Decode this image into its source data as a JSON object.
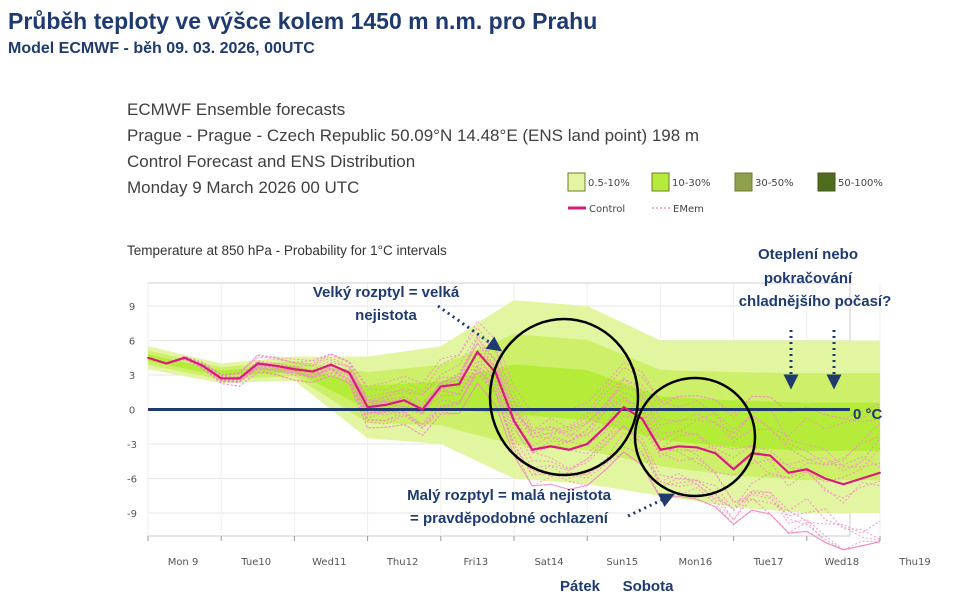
{
  "page": {
    "title": "Průběh teploty ve výšce kolem 1450 m n.m. pro Prahu",
    "subtitle": "Model ECMWF - běh 09. 03. 2026, 00UTC"
  },
  "chart_header": {
    "line1": "ECMWF Ensemble forecasts",
    "line2": "Prague - Prague - Czech Republic 50.09°N 14.48°E (ENS land point) 198 m",
    "line3": "Control Forecast and ENS Distribution",
    "line4": "Monday 9 March 2026 00 UTC",
    "panel_title": "Temperature at 850 hPa - Probability for 1°C intervals"
  },
  "legend": {
    "items": [
      {
        "label": "0.5-10%",
        "color": "#e2f5a0"
      },
      {
        "label": "10-30%",
        "color": "#b5ec3a"
      },
      {
        "label": "30-50%",
        "color": "#8ea04e"
      },
      {
        "label": "50-100%",
        "color": "#4f6b1e"
      }
    ],
    "control_label": "Control",
    "emem_label": "EMem"
  },
  "annotations": {
    "big_spread_1": "Velký rozptyl = velká",
    "big_spread_2": "nejistota",
    "small_spread_1": "Malý rozptyl = malá nejistota",
    "small_spread_2": "= pravděpodobné ochlazení",
    "warming_1": "Oteplení nebo",
    "warming_2": "pokračování",
    "warming_3": "chladnějšího počasí?",
    "zero_label": "0 °C",
    "friday": "Pátek",
    "saturday": "Sobota"
  },
  "chart_data": {
    "type": "line",
    "title": "Temperature at 850 hPa - Probability for 1°C intervals",
    "ylim": [
      -11,
      11
    ],
    "xlim": [
      0,
      10
    ],
    "y_ticks": [
      9,
      6,
      3,
      0,
      -3,
      -6,
      -9
    ],
    "x_categories": [
      "Mon 9",
      "Tue10",
      "Wed11",
      "Thu12",
      "Fri13",
      "Sat14",
      "Sun15",
      "Mon16",
      "Tue17",
      "Wed18",
      "Thu19"
    ],
    "highlight_category": "Sun15",
    "grid": true,
    "control": {
      "name": "Control",
      "x": [
        0,
        0.25,
        0.5,
        0.75,
        1.0,
        1.25,
        1.5,
        1.75,
        2.0,
        2.25,
        2.5,
        2.75,
        3.0,
        3.25,
        3.5,
        3.75,
        4.0,
        4.25,
        4.5,
        4.75,
        5.0,
        5.25,
        5.5,
        5.75,
        6.0,
        6.25,
        6.5,
        6.75,
        7.0,
        7.25,
        7.5,
        7.75,
        8.0,
        8.25,
        8.5,
        8.75,
        9.0,
        9.25,
        9.5,
        9.75,
        10.0
      ],
      "y": [
        4.5,
        4.0,
        4.5,
        3.8,
        2.7,
        2.7,
        4.0,
        3.8,
        3.5,
        3.3,
        3.9,
        3.2,
        0.2,
        0.4,
        0.8,
        0.0,
        2.0,
        2.2,
        5.0,
        3.2,
        -1.0,
        -3.5,
        -3.2,
        -3.5,
        -3.0,
        -1.5,
        0.2,
        -0.8,
        -3.5,
        -3.2,
        -3.3,
        -3.8,
        -5.2,
        -3.8,
        -4.0,
        -5.5,
        -5.2,
        -6.0,
        -6.5,
        -6.0,
        -5.5
      ]
    },
    "spread": {
      "x": [
        0,
        1,
        2,
        3,
        4,
        5,
        6,
        7,
        8,
        9,
        10
      ],
      "low": [
        3.5,
        2.3,
        2.5,
        -2.5,
        -3.0,
        -6.0,
        -6.5,
        -7.5,
        -8.5,
        -9.0,
        -9.0
      ],
      "high": [
        5.5,
        4.0,
        4.6,
        4.6,
        5.5,
        9.5,
        9.0,
        6.0,
        6.0,
        6.0,
        6.0
      ]
    }
  }
}
